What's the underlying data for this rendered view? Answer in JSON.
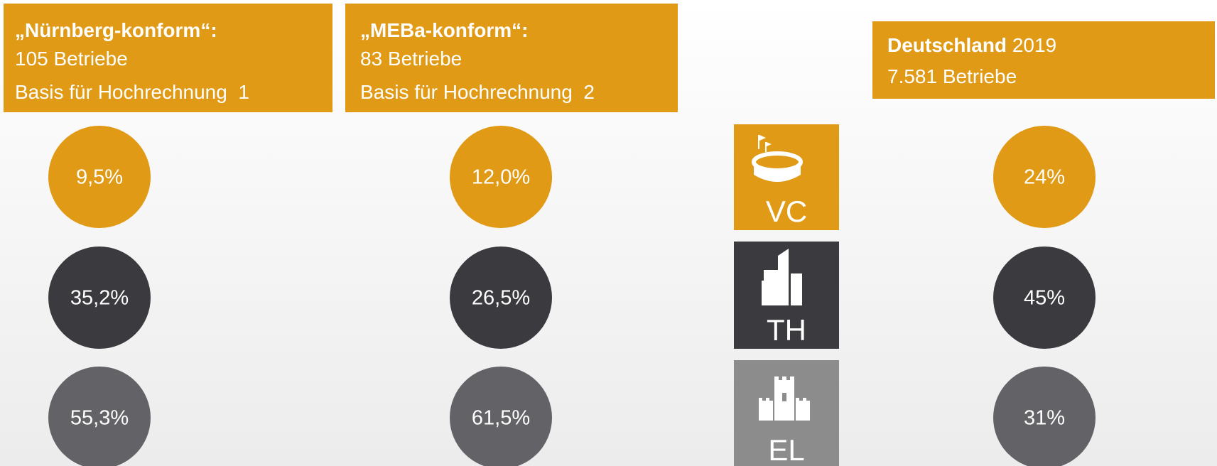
{
  "columns": [
    {
      "title": "„Nürnberg-konform“:",
      "lines": [
        "105 Betriebe",
        "Basis für Hochrechnung  1"
      ],
      "values": [
        "9,5%",
        "35,2%",
        "55,3%"
      ]
    },
    {
      "title": "„MEBa-konform“:",
      "lines": [
        "83 Betriebe",
        "Basis für Hochrechnung  2"
      ],
      "values": [
        "12,0%",
        "26,5%",
        "61,5%"
      ]
    },
    {
      "title": "Deutschland",
      "year": "2019",
      "lines": [
        "7.581 Betriebe"
      ],
      "values": [
        "24%",
        "45%",
        "31%"
      ]
    }
  ],
  "categories": [
    "VC",
    "TH",
    "EL"
  ]
}
